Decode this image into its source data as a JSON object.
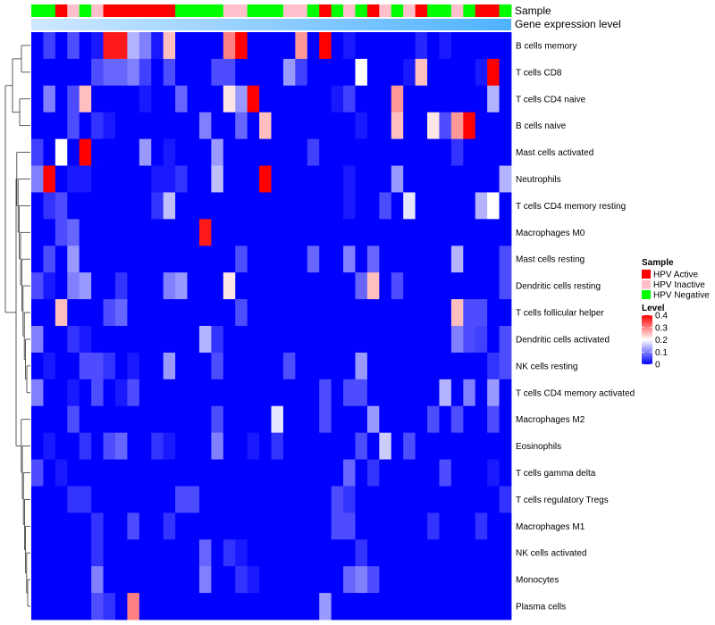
{
  "chart_data": {
    "type": "heatmap",
    "annotation_labels": [
      "Sample",
      "Gene expression level"
    ],
    "rows": [
      "B cells memory",
      "T cells CD8",
      "T cells CD4 naive",
      "B cells naive",
      "Mast cells activated",
      "Neutrophils",
      "T cells CD4 memory resting",
      "Macrophages M0",
      "Mast cells resting",
      "Dendritic cells resting",
      "T cells follicular helper",
      "Dendritic cells activated",
      "NK cells resting",
      "T cells CD4 memory activated",
      "Macrophages M2",
      "Eosinophils",
      "T cells gamma delta",
      "T cells regulatory  Tregs",
      "Macrophages M1",
      "NK cells activated",
      "Monocytes",
      "Plasma cells"
    ],
    "sample_groups": [
      "N",
      "N",
      "A",
      "I",
      "N",
      "I",
      "A",
      "A",
      "A",
      "A",
      "A",
      "A",
      "N",
      "N",
      "N",
      "N",
      "I",
      "I",
      "N",
      "N",
      "N",
      "I",
      "I",
      "N",
      "A",
      "N",
      "I",
      "N",
      "A",
      "I",
      "N",
      "I",
      "A",
      "N",
      "N",
      "I",
      "N",
      "A",
      "A",
      "N"
    ],
    "values": [
      [
        0.0,
        0.05,
        0.0,
        0.06,
        0.0,
        0.02,
        0.38,
        0.38,
        0.14,
        0.1,
        0.02,
        0.25,
        0.0,
        0.0,
        0.0,
        0.0,
        0.3,
        0.4,
        0.0,
        0.0,
        0.0,
        0.0,
        0.28,
        0.0,
        0.4,
        0.0,
        0.02,
        0.0,
        0.0,
        0.0,
        0.0,
        0.0,
        0.03,
        0.0,
        0.02,
        0.0,
        0.0,
        0.0,
        0.0,
        0.0
      ],
      [
        0.0,
        0.0,
        0.0,
        0.0,
        0.0,
        0.06,
        0.08,
        0.08,
        0.1,
        0.05,
        0.0,
        0.06,
        0.0,
        0.0,
        0.0,
        0.06,
        0.06,
        0.0,
        0.0,
        0.0,
        0.0,
        0.12,
        0.05,
        0.0,
        0.0,
        0.0,
        0.0,
        0.2,
        0.0,
        0.0,
        0.0,
        0.02,
        0.25,
        0.0,
        0.0,
        0.0,
        0.0,
        0.02,
        0.4,
        0.0
      ],
      [
        0.0,
        0.1,
        0.0,
        0.06,
        0.25,
        0.0,
        0.0,
        0.0,
        0.0,
        0.02,
        0.0,
        0.0,
        0.08,
        0.0,
        0.0,
        0.0,
        0.22,
        0.12,
        0.4,
        0.0,
        0.0,
        0.0,
        0.0,
        0.0,
        0.0,
        0.02,
        0.05,
        0.0,
        0.0,
        0.0,
        0.28,
        0.0,
        0.0,
        0.0,
        0.0,
        0.0,
        0.0,
        0.0,
        0.14,
        0.0
      ],
      [
        0.0,
        0.0,
        0.0,
        0.06,
        0.0,
        0.04,
        0.02,
        0.0,
        0.0,
        0.0,
        0.0,
        0.0,
        0.0,
        0.0,
        0.1,
        0.0,
        0.0,
        0.08,
        0.0,
        0.25,
        0.0,
        0.0,
        0.0,
        0.0,
        0.0,
        0.0,
        0.0,
        0.02,
        0.0,
        0.0,
        0.25,
        0.0,
        0.0,
        0.22,
        0.06,
        0.28,
        0.4,
        0.0,
        0.0,
        0.0
      ],
      [
        0.05,
        0.0,
        0.2,
        0.0,
        0.4,
        0.0,
        0.0,
        0.0,
        0.0,
        0.12,
        0.0,
        0.02,
        0.0,
        0.0,
        0.0,
        0.12,
        0.0,
        0.0,
        0.0,
        0.0,
        0.0,
        0.0,
        0.0,
        0.05,
        0.0,
        0.0,
        0.0,
        0.0,
        0.0,
        0.0,
        0.0,
        0.0,
        0.0,
        0.0,
        0.0,
        0.04,
        0.0,
        0.0,
        0.0,
        0.0
      ],
      [
        0.1,
        0.4,
        0.0,
        0.02,
        0.02,
        0.0,
        0.0,
        0.0,
        0.0,
        0.0,
        0.02,
        0.02,
        0.04,
        0.0,
        0.0,
        0.15,
        0.0,
        0.0,
        0.0,
        0.4,
        0.0,
        0.0,
        0.0,
        0.0,
        0.0,
        0.0,
        0.02,
        0.0,
        0.0,
        0.0,
        0.12,
        0.0,
        0.0,
        0.0,
        0.0,
        0.0,
        0.0,
        0.0,
        0.0,
        0.14
      ],
      [
        0.0,
        0.04,
        0.06,
        0.0,
        0.0,
        0.0,
        0.0,
        0.0,
        0.0,
        0.0,
        0.04,
        0.15,
        0.0,
        0.0,
        0.0,
        0.0,
        0.0,
        0.0,
        0.0,
        0.0,
        0.0,
        0.0,
        0.0,
        0.0,
        0.0,
        0.0,
        0.02,
        0.0,
        0.0,
        0.06,
        0.0,
        0.18,
        0.0,
        0.0,
        0.0,
        0.0,
        0.0,
        0.14,
        0.2,
        0.0
      ],
      [
        0.0,
        0.0,
        0.06,
        0.08,
        0.0,
        0.0,
        0.0,
        0.0,
        0.0,
        0.0,
        0.0,
        0.0,
        0.0,
        0.0,
        0.38,
        0.0,
        0.0,
        0.0,
        0.0,
        0.0,
        0.0,
        0.0,
        0.0,
        0.0,
        0.0,
        0.0,
        0.0,
        0.0,
        0.0,
        0.0,
        0.0,
        0.0,
        0.0,
        0.0,
        0.0,
        0.0,
        0.0,
        0.0,
        0.0,
        0.0
      ],
      [
        0.0,
        0.06,
        0.0,
        0.12,
        0.0,
        0.0,
        0.0,
        0.0,
        0.0,
        0.0,
        0.0,
        0.0,
        0.0,
        0.0,
        0.0,
        0.0,
        0.0,
        0.06,
        0.0,
        0.0,
        0.0,
        0.0,
        0.0,
        0.08,
        0.0,
        0.0,
        0.1,
        0.0,
        0.08,
        0.0,
        0.0,
        0.0,
        0.0,
        0.0,
        0.0,
        0.14,
        0.0,
        0.0,
        0.0,
        0.06
      ],
      [
        0.06,
        0.02,
        0.0,
        0.1,
        0.12,
        0.0,
        0.0,
        0.04,
        0.0,
        0.0,
        0.0,
        0.1,
        0.12,
        0.0,
        0.0,
        0.0,
        0.22,
        0.0,
        0.0,
        0.0,
        0.0,
        0.0,
        0.0,
        0.0,
        0.0,
        0.0,
        0.0,
        0.08,
        0.25,
        0.0,
        0.06,
        0.0,
        0.0,
        0.0,
        0.0,
        0.0,
        0.0,
        0.0,
        0.0,
        0.06
      ],
      [
        0.0,
        0.0,
        0.25,
        0.0,
        0.0,
        0.0,
        0.06,
        0.08,
        0.0,
        0.0,
        0.0,
        0.0,
        0.0,
        0.0,
        0.0,
        0.0,
        0.0,
        0.06,
        0.0,
        0.0,
        0.0,
        0.0,
        0.0,
        0.0,
        0.0,
        0.0,
        0.0,
        0.0,
        0.0,
        0.0,
        0.0,
        0.0,
        0.0,
        0.0,
        0.0,
        0.25,
        0.06,
        0.06,
        0.0,
        0.0
      ],
      [
        0.1,
        0.0,
        0.0,
        0.04,
        0.02,
        0.0,
        0.0,
        0.0,
        0.0,
        0.0,
        0.0,
        0.0,
        0.0,
        0.0,
        0.14,
        0.04,
        0.0,
        0.0,
        0.0,
        0.0,
        0.0,
        0.0,
        0.0,
        0.0,
        0.0,
        0.0,
        0.0,
        0.0,
        0.0,
        0.0,
        0.0,
        0.0,
        0.0,
        0.0,
        0.0,
        0.1,
        0.06,
        0.05,
        0.0,
        0.06
      ],
      [
        0.0,
        0.02,
        0.0,
        0.0,
        0.06,
        0.06,
        0.04,
        0.0,
        0.02,
        0.0,
        0.0,
        0.12,
        0.0,
        0.0,
        0.0,
        0.06,
        0.0,
        0.0,
        0.0,
        0.0,
        0.0,
        0.06,
        0.0,
        0.0,
        0.0,
        0.0,
        0.0,
        0.12,
        0.0,
        0.0,
        0.0,
        0.0,
        0.0,
        0.0,
        0.0,
        0.0,
        0.0,
        0.0,
        0.04,
        0.06
      ],
      [
        0.1,
        0.0,
        0.0,
        0.02,
        0.0,
        0.06,
        0.0,
        0.02,
        0.06,
        0.0,
        0.0,
        0.0,
        0.0,
        0.0,
        0.0,
        0.0,
        0.0,
        0.0,
        0.0,
        0.0,
        0.0,
        0.0,
        0.0,
        0.0,
        0.06,
        0.0,
        0.06,
        0.06,
        0.0,
        0.0,
        0.0,
        0.0,
        0.0,
        0.0,
        0.14,
        0.0,
        0.1,
        0.0,
        0.12,
        0.0
      ],
      [
        0.0,
        0.0,
        0.0,
        0.06,
        0.0,
        0.0,
        0.0,
        0.0,
        0.0,
        0.0,
        0.0,
        0.0,
        0.0,
        0.0,
        0.0,
        0.06,
        0.0,
        0.0,
        0.0,
        0.0,
        0.18,
        0.0,
        0.0,
        0.0,
        0.06,
        0.0,
        0.0,
        0.0,
        0.12,
        0.0,
        0.0,
        0.0,
        0.0,
        0.06,
        0.0,
        0.06,
        0.0,
        0.0,
        0.06,
        0.0
      ],
      [
        0.0,
        0.02,
        0.0,
        0.0,
        0.04,
        0.0,
        0.06,
        0.08,
        0.0,
        0.0,
        0.04,
        0.02,
        0.0,
        0.0,
        0.0,
        0.1,
        0.0,
        0.0,
        0.02,
        0.0,
        0.04,
        0.0,
        0.0,
        0.0,
        0.0,
        0.0,
        0.0,
        0.06,
        0.0,
        0.16,
        0.0,
        0.06,
        0.0,
        0.0,
        0.0,
        0.0,
        0.0,
        0.0,
        0.0,
        0.0
      ],
      [
        0.06,
        0.0,
        0.02,
        0.0,
        0.0,
        0.0,
        0.0,
        0.0,
        0.0,
        0.0,
        0.0,
        0.0,
        0.0,
        0.0,
        0.0,
        0.0,
        0.0,
        0.0,
        0.0,
        0.0,
        0.0,
        0.0,
        0.0,
        0.0,
        0.0,
        0.0,
        0.08,
        0.0,
        0.04,
        0.0,
        0.0,
        0.0,
        0.0,
        0.0,
        0.06,
        0.0,
        0.0,
        0.0,
        0.02,
        0.0
      ],
      [
        0.0,
        0.0,
        0.0,
        0.04,
        0.04,
        0.0,
        0.0,
        0.0,
        0.0,
        0.0,
        0.0,
        0.0,
        0.06,
        0.06,
        0.0,
        0.0,
        0.0,
        0.0,
        0.0,
        0.0,
        0.0,
        0.0,
        0.0,
        0.0,
        0.0,
        0.06,
        0.04,
        0.0,
        0.0,
        0.0,
        0.0,
        0.0,
        0.0,
        0.0,
        0.0,
        0.0,
        0.0,
        0.0,
        0.0,
        0.04
      ],
      [
        0.0,
        0.0,
        0.0,
        0.0,
        0.0,
        0.04,
        0.0,
        0.0,
        0.06,
        0.0,
        0.0,
        0.04,
        0.0,
        0.0,
        0.0,
        0.0,
        0.0,
        0.0,
        0.0,
        0.0,
        0.0,
        0.0,
        0.0,
        0.0,
        0.0,
        0.06,
        0.06,
        0.0,
        0.0,
        0.0,
        0.0,
        0.0,
        0.0,
        0.04,
        0.0,
        0.0,
        0.0,
        0.04,
        0.0,
        0.0
      ],
      [
        0.0,
        0.0,
        0.0,
        0.0,
        0.0,
        0.04,
        0.0,
        0.0,
        0.0,
        0.0,
        0.0,
        0.0,
        0.0,
        0.0,
        0.08,
        0.0,
        0.04,
        0.02,
        0.0,
        0.0,
        0.0,
        0.0,
        0.0,
        0.0,
        0.0,
        0.0,
        0.0,
        0.04,
        0.0,
        0.0,
        0.0,
        0.0,
        0.0,
        0.0,
        0.0,
        0.0,
        0.0,
        0.0,
        0.0,
        0.0
      ],
      [
        0.0,
        0.0,
        0.0,
        0.0,
        0.0,
        0.1,
        0.0,
        0.0,
        0.0,
        0.0,
        0.0,
        0.0,
        0.0,
        0.0,
        0.1,
        0.0,
        0.0,
        0.04,
        0.02,
        0.0,
        0.0,
        0.0,
        0.0,
        0.0,
        0.0,
        0.0,
        0.08,
        0.1,
        0.06,
        0.0,
        0.0,
        0.0,
        0.0,
        0.0,
        0.0,
        0.0,
        0.0,
        0.0,
        0.0,
        0.0
      ],
      [
        0.0,
        0.0,
        0.0,
        0.0,
        0.0,
        0.06,
        0.04,
        0.0,
        0.3,
        0.0,
        0.0,
        0.0,
        0.0,
        0.0,
        0.0,
        0.0,
        0.0,
        0.0,
        0.0,
        0.0,
        0.0,
        0.0,
        0.0,
        0.0,
        0.12,
        0.0,
        0.0,
        0.0,
        0.0,
        0.0,
        0.0,
        0.0,
        0.0,
        0.0,
        0.0,
        0.0,
        0.0,
        0.0,
        0.0,
        0.0
      ]
    ],
    "sample_legend": {
      "title": "Sample",
      "entries": [
        {
          "key": "A",
          "label": "HPV Active",
          "color": "#ff0000"
        },
        {
          "key": "I",
          "label": "HPV Inactive",
          "color": "#ffc0cb"
        },
        {
          "key": "N",
          "label": "HPV Negative",
          "color": "#00ff00"
        }
      ]
    },
    "level_legend": {
      "title": "Level",
      "ticks": [
        0.4,
        0.3,
        0.2,
        0.1,
        0
      ],
      "range": [
        0,
        0.4
      ],
      "colors": {
        "low": "#0000ff",
        "mid": "#ffffff",
        "high": "#ff0000"
      }
    },
    "expression_bar_colors": [
      "#cfe8ff",
      "#4fb3ff"
    ]
  }
}
